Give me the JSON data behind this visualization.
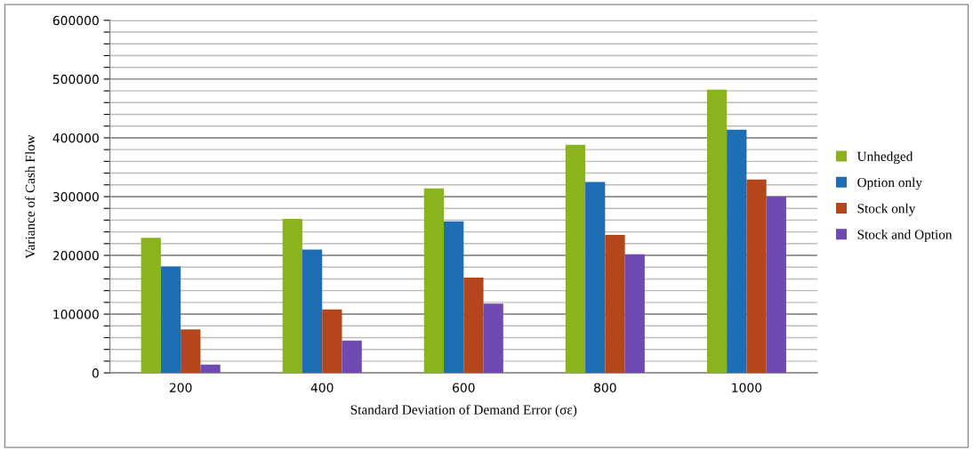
{
  "chart_data": {
    "type": "bar",
    "xlabel": "Standard Deviation of Demand Error (σε)",
    "ylabel": "Variance of Cash Flow",
    "categories": [
      "200",
      "400",
      "600",
      "800",
      "1000"
    ],
    "series": [
      {
        "name": "Unhedged",
        "color": "#8ab31e",
        "values": [
          230000,
          262000,
          314000,
          388000,
          482000
        ]
      },
      {
        "name": "Option only",
        "color": "#1f6db3",
        "values": [
          181000,
          210000,
          258000,
          325000,
          414000
        ]
      },
      {
        "name": "Stock only",
        "color": "#b5461b",
        "values": [
          74000,
          108000,
          162000,
          235000,
          329000
        ]
      },
      {
        "name": "Stock and Option",
        "color": "#6f4ab3",
        "values": [
          14000,
          55000,
          118000,
          202000,
          300000
        ]
      }
    ],
    "ylim": [
      0,
      600000
    ],
    "yticks": [
      0,
      {
        "value": 20000,
        "label": null
      },
      {
        "value": 40000,
        "label": null
      },
      {
        "value": 60000,
        "label": null
      },
      {
        "value": 80000,
        "label": null
      },
      100000,
      {
        "value": 120000,
        "label": null
      },
      {
        "value": 140000,
        "label": null
      },
      {
        "value": 160000,
        "label": null
      },
      {
        "value": 180000,
        "label": null
      },
      200000,
      {
        "value": 220000,
        "label": null
      },
      {
        "value": 240000,
        "label": null
      },
      {
        "value": 260000,
        "label": null
      },
      {
        "value": 280000,
        "label": null
      },
      300000,
      {
        "value": 320000,
        "label": null
      },
      {
        "value": 340000,
        "label": null
      },
      {
        "value": 360000,
        "label": null
      },
      {
        "value": 380000,
        "label": null
      },
      400000,
      {
        "value": 420000,
        "label": null
      },
      {
        "value": 440000,
        "label": null
      },
      {
        "value": 460000,
        "label": null
      },
      {
        "value": 480000,
        "label": null
      },
      500000,
      {
        "value": 520000,
        "label": null
      },
      {
        "value": 540000,
        "label": null
      },
      {
        "value": 560000,
        "label": null
      },
      {
        "value": 580000,
        "label": null
      },
      600000
    ],
    "grid": "y",
    "legend": "right"
  }
}
